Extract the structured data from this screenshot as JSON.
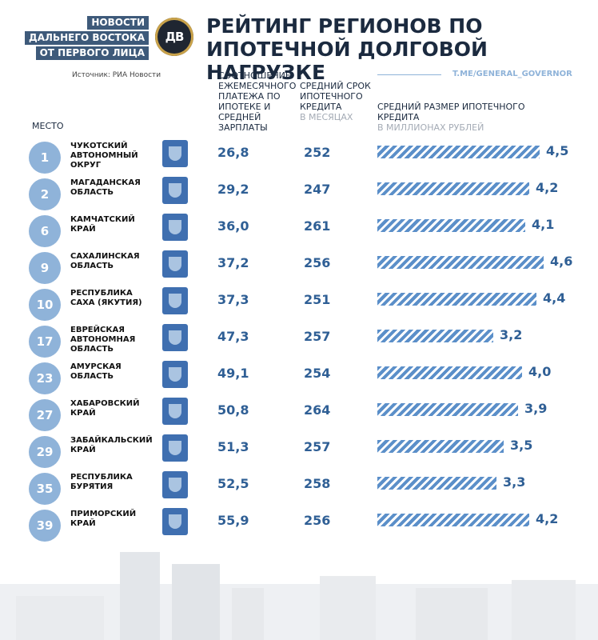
{
  "header": {
    "brand_lines": [
      "НОВОСТИ",
      "ДАЛЬНЕГО ВОСТОКА",
      "ОТ ПЕРВОГО ЛИЦА"
    ],
    "logo_text": "ДВ",
    "title": "РЕЙТИНГ РЕГИОНОВ ПО ИПОТЕЧНОЙ ДОЛГОВОЙ НАГРУЗКЕ",
    "source": "Источник: РИА Новости",
    "telegram": "T.ME/GENERAL_GOVERNOR"
  },
  "columns": {
    "place": "МЕСТО",
    "ratio": "СООТНОШЕНИЕ ЕЖЕМЕСЯЧНОГО ПЛАТЕЖА ПО ИПОТЕКЕ И СРЕДНЕЙ ЗАРПЛАТЫ",
    "term": "СРЕДНИЙ СРОК ИПОТЕЧНОГО КРЕДИТА",
    "term_unit": "В МЕСЯЦАХ",
    "size": "СРЕДНИЙ РАЗМЕР ИПОТЕЧНОГО КРЕДИТА",
    "size_unit": "В МИЛЛИОНАХ РУБЛЕЙ"
  },
  "colors": {
    "accent": "#8fb3d9",
    "bar": "#5b8fc9",
    "value": "#2f5f95",
    "brand": "#3e5a7a"
  },
  "chart_data": {
    "type": "bar",
    "title": "РЕЙТИНГ РЕГИОНОВ ПО ИПОТЕЧНОЙ ДОЛГОВОЙ НАГРУЗКЕ",
    "xlabel": "",
    "ylabel": "СРЕДНИЙ РАЗМЕР ИПОТЕЧНОГО КРЕДИТА, В МИЛЛИОНАХ РУБЛЕЙ",
    "ylim": [
      0,
      4.6
    ],
    "rows": [
      {
        "place": "1",
        "region": "ЧУКОТСКИЙ АВТОНОМНЫЙ ОКРУГ",
        "ratio": "26,8",
        "term": "252",
        "size": 4.5,
        "size_label": "4,5"
      },
      {
        "place": "2",
        "region": "МАГАДАНСКАЯ ОБЛАСТЬ",
        "ratio": "29,2",
        "term": "247",
        "size": 4.2,
        "size_label": "4,2"
      },
      {
        "place": "6",
        "region": "КАМЧАТСКИЙ КРАЙ",
        "ratio": "36,0",
        "term": "261",
        "size": 4.1,
        "size_label": "4,1"
      },
      {
        "place": "9",
        "region": "САХАЛИНСКАЯ ОБЛАСТЬ",
        "ratio": "37,2",
        "term": "256",
        "size": 4.6,
        "size_label": "4,6"
      },
      {
        "place": "10",
        "region": "РЕСПУБЛИКА САХА (ЯКУТИЯ)",
        "ratio": "37,3",
        "term": "251",
        "size": 4.4,
        "size_label": "4,4"
      },
      {
        "place": "17",
        "region": "ЕВРЕЙСКАЯ АВТОНОМНАЯ ОБЛАСТЬ",
        "ratio": "47,3",
        "term": "257",
        "size": 3.2,
        "size_label": "3,2"
      },
      {
        "place": "23",
        "region": "АМУРСКАЯ ОБЛАСТЬ",
        "ratio": "49,1",
        "term": "254",
        "size": 4.0,
        "size_label": "4,0"
      },
      {
        "place": "27",
        "region": "ХАБАРОВСКИЙ КРАЙ",
        "ratio": "50,8",
        "term": "264",
        "size": 3.9,
        "size_label": "3,9"
      },
      {
        "place": "29",
        "region": "ЗАБАЙКАЛЬСКИЙ КРАЙ",
        "ratio": "51,3",
        "term": "257",
        "size": 3.5,
        "size_label": "3,5"
      },
      {
        "place": "35",
        "region": "РЕСПУБЛИКА БУРЯТИЯ",
        "ratio": "52,5",
        "term": "258",
        "size": 3.3,
        "size_label": "3,3"
      },
      {
        "place": "39",
        "region": "ПРИМОРСКИЙ КРАЙ",
        "ratio": "55,9",
        "term": "256",
        "size": 4.2,
        "size_label": "4,2"
      }
    ]
  }
}
